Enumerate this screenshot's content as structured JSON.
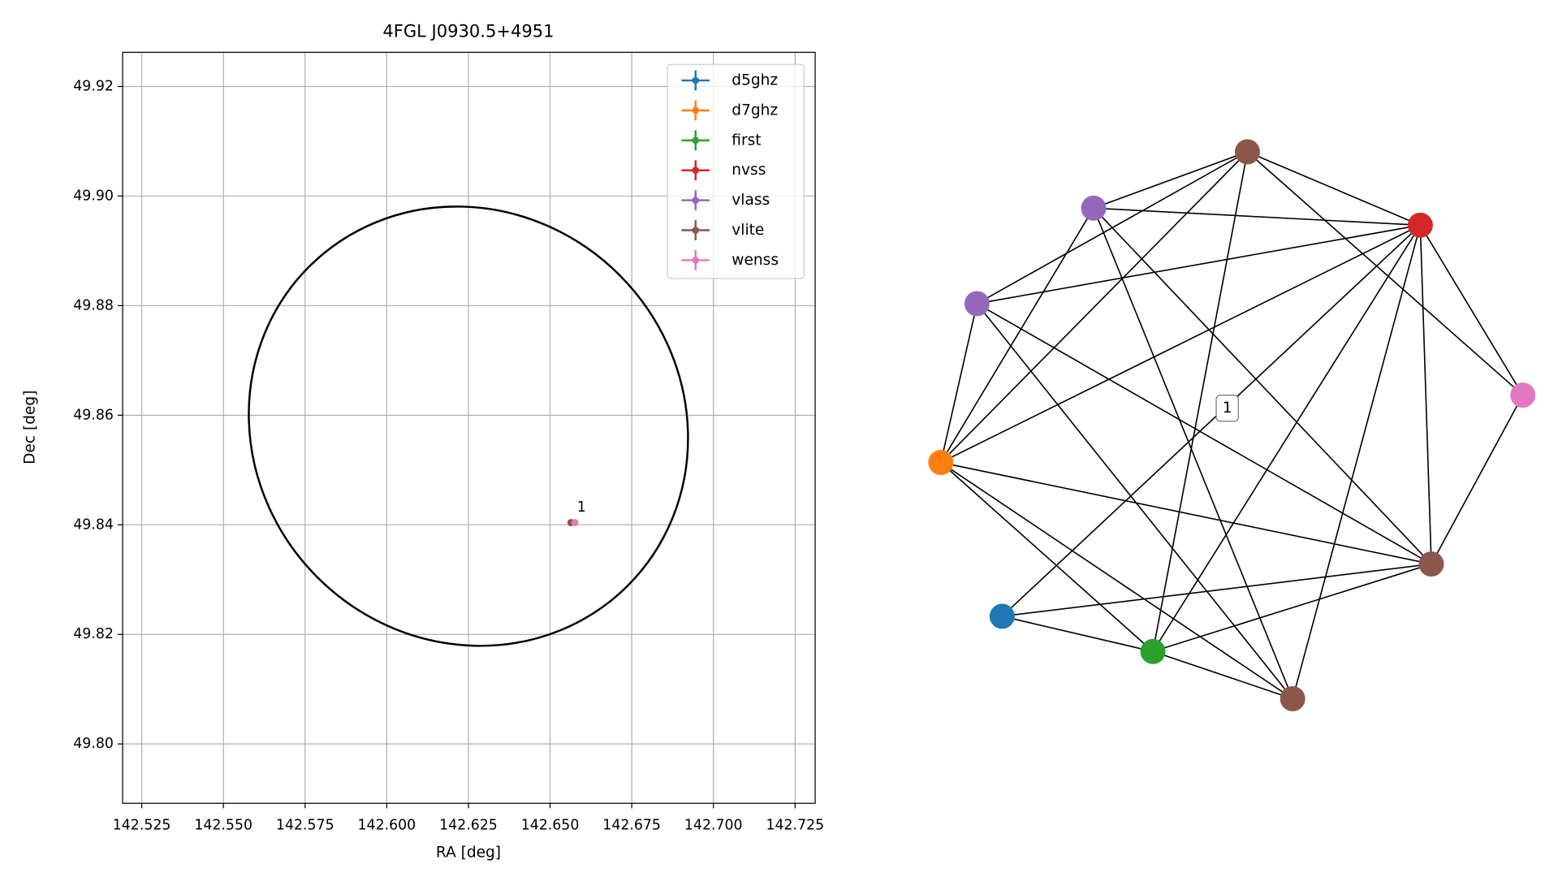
{
  "chart_data": [
    {
      "type": "scatter",
      "title": "4FGL J0930.5+4951",
      "xlabel": "RA [deg]",
      "ylabel": "Dec [deg]",
      "xlim": [
        142.51915,
        142.73115
      ],
      "ylim": [
        49.78917,
        49.92624
      ],
      "xticks": [
        142.525,
        {
          "value": 142.55,
          "label": "142.550"
        },
        142.575,
        {
          "value": 142.6,
          "label": "142.600"
        },
        142.625,
        {
          "value": 142.65,
          "label": "142.650"
        },
        142.675,
        {
          "value": 142.7,
          "label": "142.700"
        },
        142.725
      ],
      "yticks": [
        {
          "value": 49.8,
          "label": "49.80"
        },
        49.82,
        49.84,
        49.86,
        49.88,
        {
          "value": 49.9,
          "label": "49.90"
        },
        49.92
      ],
      "grid": true,
      "legend": "upper right",
      "ellipse": {
        "x": 142.625,
        "y": 49.858,
        "width": 0.138,
        "height": 0.078,
        "angle": -45,
        "color": "#000000"
      },
      "series": [
        {
          "name": "d5ghz",
          "color": "#1f77b4",
          "x": [
            142.6564
          ],
          "y": [
            49.8404
          ]
        },
        {
          "name": "d7ghz",
          "color": "#ff7f0e",
          "x": [
            142.6564
          ],
          "y": [
            49.8404
          ]
        },
        {
          "name": "first",
          "color": "#2ca02c",
          "x": [
            142.6564
          ],
          "y": [
            49.8404
          ]
        },
        {
          "name": "nvss",
          "color": "#d62728",
          "x": [
            142.6564
          ],
          "y": [
            49.8404
          ]
        },
        {
          "name": "vlass",
          "color": "#9467bd",
          "x": [
            142.6564
          ],
          "y": [
            49.8404
          ]
        },
        {
          "name": "vlite",
          "color": "#8c564b",
          "x": [
            142.6564
          ],
          "y": [
            49.8404
          ]
        },
        {
          "name": "wenss",
          "color": "#e377c2",
          "x": [
            142.6576
          ],
          "y": [
            49.8404
          ]
        }
      ],
      "annotations": [
        {
          "text": "1",
          "x": 142.6564,
          "y": 49.8404
        }
      ]
    },
    {
      "type": "network",
      "label": "1",
      "nodes": [
        {
          "color": "#8c564b"
        },
        {
          "color": "#d62728"
        },
        {
          "color": "#e377c2"
        },
        {
          "color": "#8c564b"
        },
        {
          "color": "#8c564b"
        },
        {
          "color": "#2ca02c"
        },
        {
          "color": "#1f77b4"
        },
        {
          "color": "#ff7f0e"
        },
        {
          "color": "#9467bd"
        },
        {
          "color": "#9467bd"
        }
      ],
      "edges": [
        [
          0,
          9
        ],
        [
          0,
          8
        ],
        [
          0,
          7
        ],
        [
          0,
          1
        ],
        [
          0,
          2
        ],
        [
          0,
          5
        ],
        [
          1,
          9
        ],
        [
          1,
          8
        ],
        [
          1,
          7
        ],
        [
          1,
          2
        ],
        [
          1,
          3
        ],
        [
          1,
          4
        ],
        [
          1,
          5
        ],
        [
          1,
          6
        ],
        [
          9,
          4
        ],
        [
          9,
          3
        ],
        [
          9,
          7
        ],
        [
          8,
          7
        ],
        [
          8,
          3
        ],
        [
          8,
          4
        ],
        [
          7,
          3
        ],
        [
          7,
          5
        ],
        [
          7,
          4
        ],
        [
          6,
          5
        ],
        [
          6,
          3
        ],
        [
          5,
          4
        ],
        [
          5,
          3
        ],
        [
          3,
          2
        ]
      ]
    }
  ]
}
